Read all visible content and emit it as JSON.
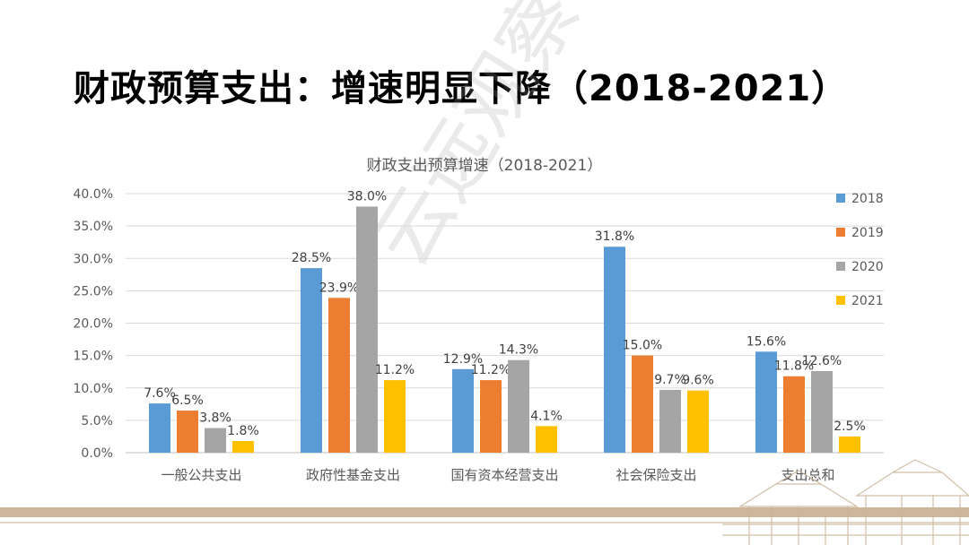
{
  "slide": {
    "title": "财政预算支出：增速明显下降（2018-2021）",
    "watermark": "云远观察"
  },
  "colors": {
    "2018": "#5b9bd5",
    "2019": "#ed7d31",
    "2020": "#a5a5a5",
    "2021": "#ffc000"
  },
  "chart_data": {
    "type": "bar",
    "title": "财政支出预算增速（2018-2021）",
    "categories": [
      "一般公共支出",
      "政府性基金支出",
      "国有资本经营支出",
      "社会保险支出",
      "支出总和"
    ],
    "series": [
      {
        "name": "2018",
        "values": [
          7.6,
          28.5,
          12.9,
          31.8,
          15.6
        ],
        "labels": [
          "7.6%",
          "28.5%",
          "12.9%",
          "31.8%",
          "15.6%"
        ]
      },
      {
        "name": "2019",
        "values": [
          6.5,
          23.9,
          11.2,
          15.0,
          11.8
        ],
        "labels": [
          "6.5%",
          "23.9%",
          "11.2%",
          "15.0%",
          "11.8%"
        ]
      },
      {
        "name": "2020",
        "values": [
          3.8,
          38.0,
          14.3,
          9.7,
          12.6
        ],
        "labels": [
          "3.8%",
          "38.0%",
          "14.3%",
          "9.7%",
          "12.6%"
        ]
      },
      {
        "name": "2021",
        "values": [
          1.8,
          11.2,
          4.1,
          9.6,
          2.5
        ],
        "labels": [
          "1.8%",
          "11.2%",
          "4.1%",
          "9.6%",
          "2.5%"
        ]
      }
    ],
    "ylim": [
      0,
      40
    ],
    "yticks": [
      "0.0%",
      "5.0%",
      "10.0%",
      "15.0%",
      "20.0%",
      "25.0%",
      "30.0%",
      "35.0%",
      "40.0%"
    ],
    "legend": [
      "2018",
      "2019",
      "2020",
      "2021"
    ],
    "legend_position": "right",
    "grid": true
  }
}
